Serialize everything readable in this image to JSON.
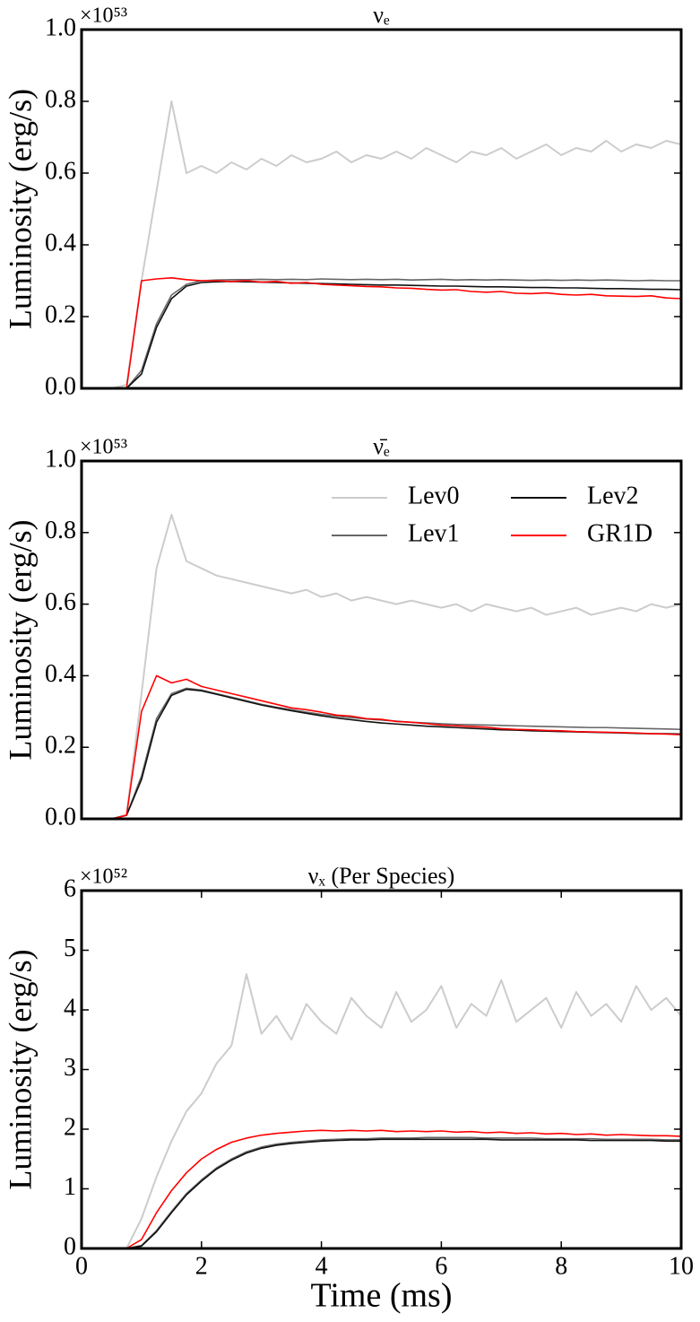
{
  "chart_data": [
    {
      "type": "line",
      "title": "νₑ",
      "y_offset_label": "×10⁵³",
      "ylabel": "Luminosity (erg/s)",
      "xlim": [
        0,
        10
      ],
      "ylim": [
        0,
        1
      ],
      "yticks": [
        {
          "value": 0,
          "label": "0.0"
        },
        0.2,
        0.4,
        0.6,
        0.8,
        {
          "value": 1,
          "label": "1.0"
        }
      ],
      "x": [
        0,
        0.25,
        0.5,
        0.75,
        1,
        1.25,
        1.5,
        1.75,
        2,
        2.25,
        2.5,
        2.75,
        3,
        3.25,
        3.5,
        3.75,
        4,
        4.25,
        4.5,
        4.75,
        5,
        5.25,
        5.5,
        5.75,
        6,
        6.25,
        6.5,
        6.75,
        7,
        7.25,
        7.5,
        7.75,
        8,
        8.25,
        8.5,
        8.75,
        9,
        9.25,
        9.5,
        9.75,
        10
      ],
      "series": [
        {
          "color": "#cccccc",
          "values": [
            0,
            0,
            0,
            0.01,
            0.3,
            0.55,
            0.8,
            0.6,
            0.62,
            0.6,
            0.63,
            0.61,
            0.64,
            0.62,
            0.65,
            0.63,
            0.64,
            0.66,
            0.63,
            0.65,
            0.64,
            0.66,
            0.64,
            0.67,
            0.65,
            0.63,
            0.66,
            0.65,
            0.67,
            0.64,
            0.66,
            0.68,
            0.65,
            0.67,
            0.66,
            0.69,
            0.66,
            0.68,
            0.67,
            0.69,
            0.68
          ]
        },
        {
          "color": "#666666",
          "values": [
            0,
            0,
            0,
            0,
            0.05,
            0.18,
            0.26,
            0.29,
            0.3,
            0.302,
            0.303,
            0.303,
            0.304,
            0.303,
            0.304,
            0.303,
            0.305,
            0.304,
            0.303,
            0.304,
            0.303,
            0.304,
            0.302,
            0.303,
            0.304,
            0.302,
            0.303,
            0.302,
            0.303,
            0.302,
            0.301,
            0.302,
            0.301,
            0.302,
            0.301,
            0.302,
            0.301,
            0.3,
            0.301,
            0.3,
            0.3
          ]
        },
        {
          "color": "#111111",
          "values": [
            0,
            0,
            0,
            0,
            0.04,
            0.17,
            0.25,
            0.285,
            0.295,
            0.297,
            0.298,
            0.297,
            0.296,
            0.295,
            0.294,
            0.293,
            0.292,
            0.291,
            0.29,
            0.289,
            0.288,
            0.288,
            0.287,
            0.286,
            0.285,
            0.285,
            0.284,
            0.283,
            0.283,
            0.282,
            0.281,
            0.281,
            0.28,
            0.28,
            0.279,
            0.278,
            0.278,
            0.277,
            0.276,
            0.276,
            0.275
          ]
        },
        {
          "color": "#ff0000",
          "values": [
            0,
            0,
            0,
            0,
            0.3,
            0.305,
            0.308,
            0.303,
            0.3,
            0.3,
            0.298,
            0.3,
            0.296,
            0.298,
            0.293,
            0.295,
            0.29,
            0.288,
            0.286,
            0.284,
            0.283,
            0.28,
            0.279,
            0.276,
            0.274,
            0.275,
            0.27,
            0.268,
            0.27,
            0.265,
            0.264,
            0.266,
            0.262,
            0.26,
            0.262,
            0.258,
            0.257,
            0.256,
            0.258,
            0.252,
            0.25
          ]
        }
      ]
    },
    {
      "type": "line",
      "title": "ν̄ₑ",
      "y_offset_label": "×10⁵³",
      "ylabel": "Luminosity (erg/s)",
      "xlim": [
        0,
        10
      ],
      "ylim": [
        0,
        1
      ],
      "legend": "upper right",
      "yticks": [
        {
          "value": 0,
          "label": "0.0"
        },
        0.2,
        0.4,
        0.6,
        0.8,
        {
          "value": 1,
          "label": "1.0"
        }
      ],
      "x": [
        0,
        0.25,
        0.5,
        0.75,
        1,
        1.25,
        1.5,
        1.75,
        2,
        2.25,
        2.5,
        2.75,
        3,
        3.25,
        3.5,
        3.75,
        4,
        4.25,
        4.5,
        4.75,
        5,
        5.25,
        5.5,
        5.75,
        6,
        6.25,
        6.5,
        6.75,
        7,
        7.25,
        7.5,
        7.75,
        8,
        8.25,
        8.5,
        8.75,
        9,
        9.25,
        9.5,
        9.75,
        10
      ],
      "series": [
        {
          "name": "Lev0",
          "color": "#cccccc",
          "values": [
            0,
            0,
            0,
            0.01,
            0.35,
            0.7,
            0.85,
            0.72,
            0.7,
            0.68,
            0.67,
            0.66,
            0.65,
            0.64,
            0.63,
            0.64,
            0.62,
            0.63,
            0.61,
            0.62,
            0.61,
            0.6,
            0.61,
            0.6,
            0.59,
            0.6,
            0.58,
            0.6,
            0.59,
            0.58,
            0.59,
            0.57,
            0.58,
            0.59,
            0.57,
            0.58,
            0.59,
            0.58,
            0.6,
            0.59,
            0.6
          ]
        },
        {
          "name": "Lev1",
          "color": "#666666",
          "values": [
            0,
            0,
            0,
            0.01,
            0.12,
            0.28,
            0.35,
            0.365,
            0.36,
            0.35,
            0.34,
            0.33,
            0.32,
            0.312,
            0.305,
            0.298,
            0.292,
            0.287,
            0.283,
            0.279,
            0.276,
            0.273,
            0.27,
            0.268,
            0.266,
            0.264,
            0.263,
            0.262,
            0.261,
            0.26,
            0.259,
            0.258,
            0.257,
            0.256,
            0.255,
            0.255,
            0.254,
            0.253,
            0.252,
            0.251,
            0.25
          ]
        },
        {
          "name": "Lev2",
          "color": "#111111",
          "values": [
            0,
            0,
            0,
            0.01,
            0.11,
            0.27,
            0.345,
            0.362,
            0.358,
            0.348,
            0.338,
            0.328,
            0.318,
            0.31,
            0.302,
            0.295,
            0.288,
            0.282,
            0.277,
            0.272,
            0.268,
            0.265,
            0.262,
            0.259,
            0.257,
            0.255,
            0.253,
            0.251,
            0.249,
            0.248,
            0.246,
            0.245,
            0.244,
            0.243,
            0.242,
            0.241,
            0.24,
            0.239,
            0.238,
            0.238,
            0.237
          ]
        },
        {
          "name": "GR1D",
          "color": "#ff0000",
          "values": [
            0,
            0,
            0,
            0.01,
            0.3,
            0.4,
            0.38,
            0.39,
            0.37,
            0.36,
            0.35,
            0.34,
            0.33,
            0.32,
            0.31,
            0.305,
            0.298,
            0.29,
            0.287,
            0.28,
            0.278,
            0.272,
            0.27,
            0.266,
            0.262,
            0.26,
            0.258,
            0.256,
            0.252,
            0.25,
            0.249,
            0.247,
            0.246,
            0.244,
            0.243,
            0.242,
            0.241,
            0.24,
            0.238,
            0.237,
            0.235
          ]
        }
      ]
    },
    {
      "type": "line",
      "title": "νₓ (Per Species)",
      "y_offset_label": "×10⁵²",
      "ylabel": "Luminosity (erg/s)",
      "xlabel": "Time (ms)",
      "xlim": [
        0,
        10
      ],
      "ylim": [
        0,
        6
      ],
      "xticks": [
        0,
        2,
        4,
        6,
        8,
        10
      ],
      "yticks": [
        0,
        1,
        2,
        3,
        4,
        5,
        6
      ],
      "x": [
        0,
        0.25,
        0.5,
        0.75,
        1,
        1.25,
        1.5,
        1.75,
        2,
        2.25,
        2.5,
        2.75,
        3,
        3.25,
        3.5,
        3.75,
        4,
        4.25,
        4.5,
        4.75,
        5,
        5.25,
        5.5,
        5.75,
        6,
        6.25,
        6.5,
        6.75,
        7,
        7.25,
        7.5,
        7.75,
        8,
        8.25,
        8.5,
        8.75,
        9,
        9.25,
        9.5,
        9.75,
        10
      ],
      "series": [
        {
          "color": "#cccccc",
          "values": [
            0,
            0,
            0,
            0,
            0.5,
            1.2,
            1.8,
            2.3,
            2.6,
            3.1,
            3.4,
            4.6,
            3.6,
            3.9,
            3.5,
            4.1,
            3.8,
            3.6,
            4.2,
            3.9,
            3.7,
            4.3,
            3.8,
            4.0,
            4.4,
            3.7,
            4.1,
            3.9,
            4.5,
            3.8,
            4.0,
            4.2,
            3.7,
            4.3,
            3.9,
            4.1,
            3.8,
            4.4,
            4.0,
            4.2,
            3.9
          ]
        },
        {
          "color": "#666666",
          "values": [
            0,
            0,
            0,
            0,
            0.05,
            0.3,
            0.62,
            0.92,
            1.15,
            1.35,
            1.5,
            1.62,
            1.7,
            1.75,
            1.78,
            1.8,
            1.82,
            1.83,
            1.84,
            1.84,
            1.85,
            1.85,
            1.85,
            1.86,
            1.86,
            1.86,
            1.86,
            1.85,
            1.85,
            1.85,
            1.85,
            1.84,
            1.84,
            1.84,
            1.84,
            1.83,
            1.83,
            1.83,
            1.83,
            1.82,
            1.82
          ]
        },
        {
          "color": "#111111",
          "values": [
            0,
            0,
            0,
            0,
            0.04,
            0.28,
            0.6,
            0.9,
            1.13,
            1.33,
            1.48,
            1.6,
            1.68,
            1.73,
            1.76,
            1.78,
            1.8,
            1.81,
            1.82,
            1.82,
            1.83,
            1.83,
            1.83,
            1.83,
            1.83,
            1.83,
            1.83,
            1.83,
            1.82,
            1.82,
            1.82,
            1.82,
            1.82,
            1.82,
            1.81,
            1.81,
            1.81,
            1.81,
            1.81,
            1.8,
            1.8
          ]
        },
        {
          "color": "#ff0000",
          "values": [
            0,
            0,
            0,
            0,
            0.15,
            0.6,
            0.97,
            1.27,
            1.5,
            1.66,
            1.78,
            1.85,
            1.9,
            1.93,
            1.95,
            1.97,
            1.98,
            1.97,
            1.98,
            1.97,
            1.98,
            1.96,
            1.97,
            1.96,
            1.97,
            1.95,
            1.96,
            1.94,
            1.95,
            1.93,
            1.94,
            1.92,
            1.93,
            1.91,
            1.92,
            1.9,
            1.91,
            1.9,
            1.89,
            1.89,
            1.88
          ]
        }
      ]
    }
  ]
}
